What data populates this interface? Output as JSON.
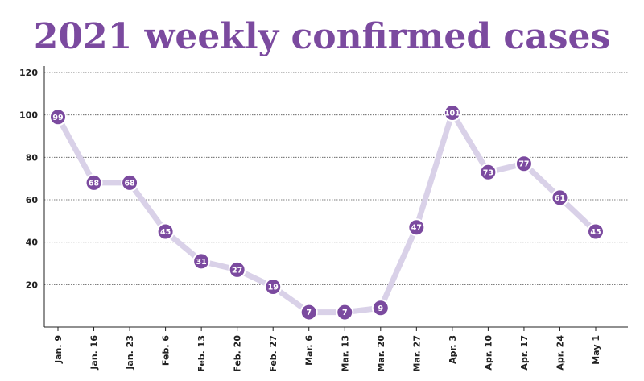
{
  "chart_data": {
    "type": "line",
    "title": "2021 weekly confirmed cases",
    "xlabel": "",
    "ylabel": "",
    "categories": [
      "Jan. 9",
      "Jan. 16",
      "Jan. 23",
      "Feb. 6",
      "Feb. 13",
      "Feb. 20",
      "Feb. 27",
      "Mar. 6",
      "Mar. 13",
      "Mar. 20",
      "Mar. 27",
      "Apr. 3",
      "Apr. 10",
      "Apr. 17",
      "Apr. 24",
      "May 1"
    ],
    "values": [
      99,
      68,
      68,
      45,
      31,
      27,
      19,
      7,
      7,
      9,
      47,
      101,
      73,
      77,
      61,
      45
    ],
    "ylim": [
      0,
      120
    ],
    "yticks": [
      20,
      40,
      60,
      80,
      100,
      120
    ],
    "grid": true,
    "colors": {
      "title": "#7b4a9f",
      "marker": "#7b4a9f",
      "line": "#d9d1e8",
      "grid": "#555555",
      "axis": "#222222"
    }
  }
}
